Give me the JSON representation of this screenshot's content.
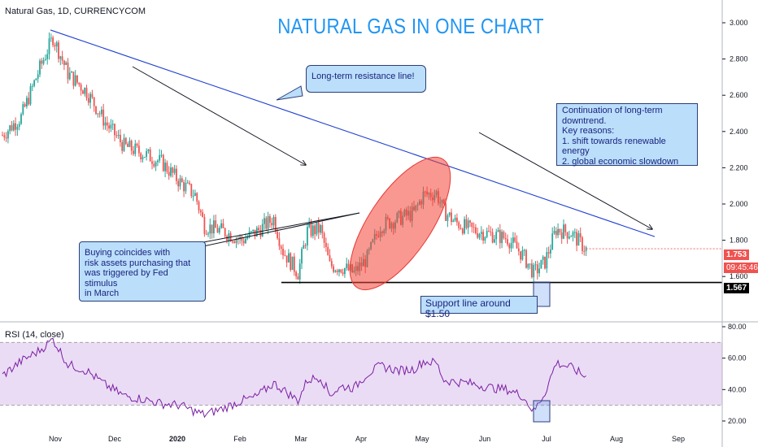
{
  "header": {
    "symbol": "Natural Gas, 1D, CURRENCYCOM",
    "title": "NATURAL GAS IN ONE CHART"
  },
  "annotations": {
    "resistance": "Long-term resistance line!",
    "downtrend": [
      "Continuation of long-term",
      "downtrend.",
      "Key reasons:",
      "1. shift towards renewable energy",
      "2. global economic slowdown"
    ],
    "buying": [
      "Buying coincides with",
      "risk assets purchasing that",
      "was triggered by Fed stimulus",
      "in March"
    ],
    "support": "Support line around $1.50"
  },
  "price_tags": {
    "last_price": "1.753",
    "countdown": "09:45:46",
    "support_level": "1.567"
  },
  "rsi": {
    "label": "RSI (14, close)"
  },
  "colors": {
    "up": "#26a69a",
    "down": "#ef5350",
    "resistance": "#1e40d0",
    "rsi_line": "#7b1fa2",
    "rsi_band": "#eadcf5",
    "title": "#2196f3"
  },
  "chart_data": [
    {
      "type": "candlestick",
      "title": "NATURAL GAS IN ONE CHART",
      "x_ticks": [
        "Nov",
        "Dec",
        "2020",
        "Feb",
        "Mar",
        "Apr",
        "May",
        "Jun",
        "Jul",
        "Aug",
        "Sep"
      ],
      "y_ticks": [
        "3.000",
        "2.800",
        "2.600",
        "2.400",
        "2.200",
        "2.000",
        "1.800",
        "1.600"
      ],
      "ylim": [
        1.52,
        3.08
      ],
      "waypoints": [
        [
          0,
          2.38
        ],
        [
          10,
          2.48
        ],
        [
          20,
          2.75
        ],
        [
          27,
          2.92
        ],
        [
          35,
          2.72
        ],
        [
          45,
          2.62
        ],
        [
          55,
          2.45
        ],
        [
          65,
          2.32
        ],
        [
          75,
          2.28
        ],
        [
          85,
          2.23
        ],
        [
          95,
          2.12
        ],
        [
          103,
          2.05
        ],
        [
          108,
          1.88
        ],
        [
          118,
          1.85
        ],
        [
          128,
          1.8
        ],
        [
          135,
          1.84
        ],
        [
          145,
          1.92
        ],
        [
          150,
          1.74
        ],
        [
          158,
          1.62
        ],
        [
          163,
          1.85
        ],
        [
          170,
          1.86
        ],
        [
          175,
          1.66
        ],
        [
          182,
          1.65
        ],
        [
          188,
          1.62
        ],
        [
          195,
          1.7
        ],
        [
          202,
          1.88
        ],
        [
          212,
          1.92
        ],
        [
          220,
          1.95
        ],
        [
          225,
          2.05
        ],
        [
          232,
          2.06
        ],
        [
          236,
          1.96
        ],
        [
          242,
          1.9
        ],
        [
          250,
          1.86
        ],
        [
          262,
          1.83
        ],
        [
          270,
          1.81
        ],
        [
          278,
          1.72
        ],
        [
          284,
          1.62
        ],
        [
          290,
          1.68
        ],
        [
          296,
          1.86
        ],
        [
          304,
          1.84
        ],
        [
          312,
          1.75
        ]
      ],
      "resistance_line": {
        "from": [
          27,
          2.96
        ],
        "to": [
          350,
          1.82
        ]
      },
      "support_line": 1.567,
      "last": 1.753
    },
    {
      "type": "line",
      "title": "RSI (14, close)",
      "y_ticks": [
        "80.00",
        "60.00",
        "40.00",
        "20.00"
      ],
      "ylim": [
        18,
        82
      ],
      "band": [
        30,
        70
      ],
      "waypoints": [
        [
          0,
          49
        ],
        [
          10,
          58
        ],
        [
          20,
          65
        ],
        [
          27,
          72
        ],
        [
          35,
          56
        ],
        [
          45,
          52
        ],
        [
          55,
          43
        ],
        [
          65,
          36
        ],
        [
          75,
          34
        ],
        [
          85,
          31
        ],
        [
          95,
          30
        ],
        [
          103,
          26
        ],
        [
          108,
          24
        ],
        [
          118,
          28
        ],
        [
          128,
          33
        ],
        [
          135,
          35
        ],
        [
          145,
          44
        ],
        [
          150,
          40
        ],
        [
          158,
          33
        ],
        [
          163,
          46
        ],
        [
          170,
          48
        ],
        [
          175,
          37
        ],
        [
          182,
          42
        ],
        [
          188,
          41
        ],
        [
          195,
          50
        ],
        [
          202,
          55
        ],
        [
          212,
          52
        ],
        [
          220,
          53
        ],
        [
          225,
          58
        ],
        [
          232,
          57
        ],
        [
          236,
          46
        ],
        [
          242,
          45
        ],
        [
          250,
          44
        ],
        [
          262,
          41
        ],
        [
          270,
          40
        ],
        [
          278,
          36
        ],
        [
          284,
          26
        ],
        [
          290,
          38
        ],
        [
          296,
          57
        ],
        [
          304,
          54
        ],
        [
          312,
          48
        ]
      ]
    }
  ]
}
